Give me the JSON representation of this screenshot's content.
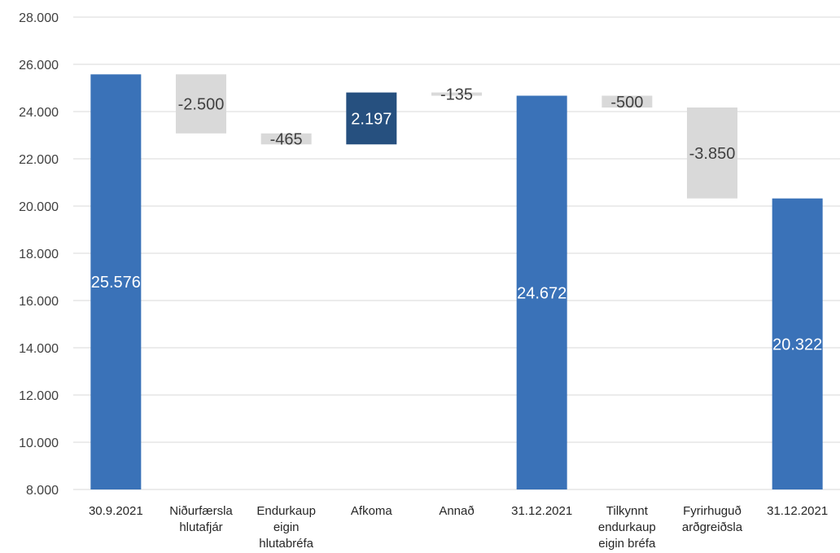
{
  "chart_data": {
    "type": "bar",
    "subtype": "waterfall",
    "categories": [
      [
        "30.9.2021"
      ],
      [
        "Niðurfærsla",
        "hlutafjár"
      ],
      [
        "Endurkaup",
        "eigin",
        "hlutabréfa"
      ],
      [
        "Afkoma"
      ],
      [
        "Annað"
      ],
      [
        "31.12.2021"
      ],
      [
        "Tilkynnt",
        "endurkaup",
        "eigin bréfa"
      ],
      [
        "Fyrirhuguð",
        "arðgreiðsla"
      ],
      [
        "31.12.2021"
      ]
    ],
    "bars": [
      {
        "kind": "total",
        "base": 8000,
        "top": 25576,
        "label": "25.576"
      },
      {
        "kind": "decrease",
        "base": 23076,
        "top": 25576,
        "label": "-2.500"
      },
      {
        "kind": "decrease",
        "base": 22611,
        "top": 23076,
        "label": "-465"
      },
      {
        "kind": "increase",
        "base": 22611,
        "top": 24808,
        "label": "2.197"
      },
      {
        "kind": "decrease",
        "base": 24672,
        "top": 24808,
        "label": "-135"
      },
      {
        "kind": "total",
        "base": 8000,
        "top": 24672,
        "label": "24.672"
      },
      {
        "kind": "decrease",
        "base": 24172,
        "top": 24672,
        "label": "-500"
      },
      {
        "kind": "decrease",
        "base": 20322,
        "top": 24172,
        "label": "-3.850"
      },
      {
        "kind": "total",
        "base": 8000,
        "top": 20322,
        "label": "20.322"
      }
    ],
    "ylim": [
      8000,
      28000
    ],
    "yticks": [
      8000,
      10000,
      12000,
      14000,
      16000,
      18000,
      20000,
      22000,
      24000,
      26000,
      28000
    ],
    "ytick_labels": [
      "8.000",
      "10.000",
      "12.000",
      "14.000",
      "16.000",
      "18.000",
      "20.000",
      "22.000",
      "24.000",
      "26.000",
      "28.000"
    ],
    "grid": true,
    "colors": {
      "total": "#3A72B8",
      "increase": "#26507F",
      "decrease": "#D9D9D9",
      "grid": "#D9D9D9",
      "label_on_dark": "#FFFFFF",
      "label_on_light": "#404040"
    }
  }
}
